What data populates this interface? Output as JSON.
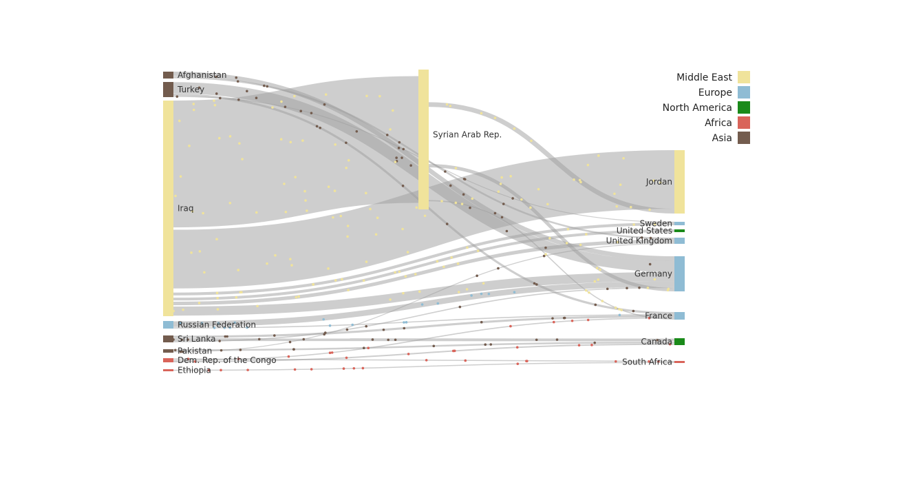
{
  "chart_data": {
    "type": "sankey",
    "region_colors": {
      "Middle East": "#f0e39b",
      "Europe": "#8fbcd4",
      "North America": "#1a8a1a",
      "Africa": "#d9645a",
      "Asia": "#735c4e"
    },
    "legend": [
      {
        "label": "Middle East",
        "color": "#f0e39b"
      },
      {
        "label": "Europe",
        "color": "#8fbcd4"
      },
      {
        "label": "North America",
        "color": "#1a8a1a"
      },
      {
        "label": "Africa",
        "color": "#d9645a"
      },
      {
        "label": "Asia",
        "color": "#735c4e"
      }
    ],
    "nodes": [
      {
        "id": "afghanistan",
        "name": "Afghanistan",
        "region": "Asia",
        "column": 0
      },
      {
        "id": "turkey",
        "name": "Turkey",
        "region": "Asia",
        "column": 0
      },
      {
        "id": "iraq",
        "name": "Iraq",
        "region": "Middle East",
        "column": 0
      },
      {
        "id": "russia",
        "name": "Russian Federation",
        "region": "Europe",
        "column": 0
      },
      {
        "id": "srilanka",
        "name": "Sri Lanka",
        "region": "Asia",
        "column": 0
      },
      {
        "id": "pakistan",
        "name": "Pakistan",
        "region": "Asia",
        "column": 0
      },
      {
        "id": "drc",
        "name": "Dem. Rep. of the Congo",
        "region": "Africa",
        "column": 0
      },
      {
        "id": "ethiopia",
        "name": "Ethiopia",
        "region": "Africa",
        "column": 0
      },
      {
        "id": "syria",
        "name": "Syrian Arab Rep.",
        "region": "Middle East",
        "column": 1
      },
      {
        "id": "jordan",
        "name": "Jordan",
        "region": "Middle East",
        "column": 2
      },
      {
        "id": "sweden",
        "name": "Sweden",
        "region": "Europe",
        "column": 2
      },
      {
        "id": "usa",
        "name": "United States",
        "region": "North America",
        "column": 2
      },
      {
        "id": "uk",
        "name": "United Kingdom",
        "region": "Europe",
        "column": 2
      },
      {
        "id": "germany",
        "name": "Germany",
        "region": "Europe",
        "column": 2
      },
      {
        "id": "france",
        "name": "France",
        "region": "Europe",
        "column": 2
      },
      {
        "id": "canada",
        "name": "Canada",
        "region": "North America",
        "column": 2
      },
      {
        "id": "southafrica",
        "name": "South Africa",
        "region": "Africa",
        "column": 2
      }
    ],
    "links": [
      {
        "source": "afghanistan",
        "target": "germany",
        "value": 4
      },
      {
        "source": "afghanistan",
        "target": "uk",
        "value": 2
      },
      {
        "source": "turkey",
        "target": "germany",
        "value": 10
      },
      {
        "source": "turkey",
        "target": "france",
        "value": 2
      },
      {
        "source": "turkey",
        "target": "sweden",
        "value": 1
      },
      {
        "source": "iraq",
        "target": "syria",
        "value": 100
      },
      {
        "source": "iraq",
        "target": "jordan",
        "value": 50
      },
      {
        "source": "iraq",
        "target": "sweden",
        "value": 5
      },
      {
        "source": "iraq",
        "target": "usa",
        "value": 3
      },
      {
        "source": "iraq",
        "target": "uk",
        "value": 4
      },
      {
        "source": "iraq",
        "target": "germany",
        "value": 8
      },
      {
        "source": "russia",
        "target": "germany",
        "value": 5
      },
      {
        "source": "russia",
        "target": "france",
        "value": 1
      },
      {
        "source": "srilanka",
        "target": "france",
        "value": 2
      },
      {
        "source": "srilanka",
        "target": "canada",
        "value": 2
      },
      {
        "source": "srilanka",
        "target": "germany",
        "value": 1
      },
      {
        "source": "pakistan",
        "target": "canada",
        "value": 1
      },
      {
        "source": "pakistan",
        "target": "uk",
        "value": 1
      },
      {
        "source": "drc",
        "target": "southafrica",
        "value": 1
      },
      {
        "source": "drc",
        "target": "france",
        "value": 1
      },
      {
        "source": "drc",
        "target": "canada",
        "value": 1
      },
      {
        "source": "ethiopia",
        "target": "southafrica",
        "value": 1
      },
      {
        "source": "syria",
        "target": "jordan",
        "value": 4
      },
      {
        "source": "syria",
        "target": "germany",
        "value": 3
      },
      {
        "source": "syria",
        "target": "france",
        "value": 1
      }
    ]
  }
}
